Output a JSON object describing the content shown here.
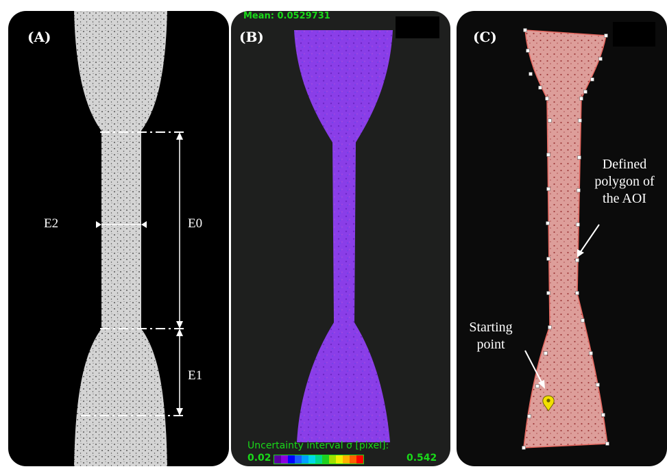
{
  "panel_a": {
    "label": "(A)",
    "dims": {
      "e0": "E0",
      "e1": "E1",
      "e2": "E2"
    }
  },
  "panel_b": {
    "label": "(B)",
    "mean_text": "Mean: 0.0529731",
    "colorbar": {
      "title": "Uncertainty interval σ [pixel]:",
      "min": "0.02",
      "max": "0.542",
      "colors": [
        "#5a00a0",
        "#8a00e0",
        "#0000ff",
        "#1a5cff",
        "#00a0ff",
        "#00d8e8",
        "#00d890",
        "#20d020",
        "#a0e000",
        "#f0f000",
        "#ffb000",
        "#ff6000",
        "#ff0000"
      ]
    }
  },
  "panel_c": {
    "label": "(C)",
    "annotation_polygon": [
      "Defined",
      "polygon of",
      "the AOI"
    ],
    "annotation_start": [
      "Starting",
      "point"
    ]
  }
}
